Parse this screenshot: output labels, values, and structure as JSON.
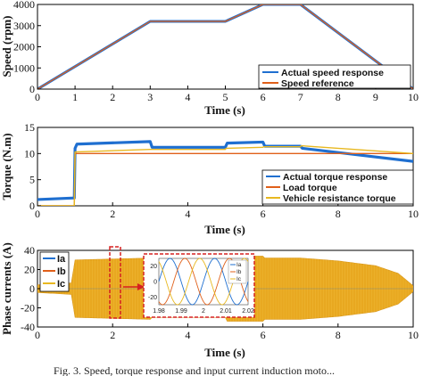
{
  "chart_data": [
    {
      "type": "line",
      "xlabel": "Time (s)",
      "ylabel": "Speed (rpm)",
      "xlim": [
        0,
        10
      ],
      "ylim": [
        0,
        4000
      ],
      "xticks": [
        "0",
        "1",
        "2",
        "3",
        "4",
        "5",
        "6",
        "7",
        "8",
        "9",
        "10"
      ],
      "yticks": [
        "0",
        "1000",
        "2000",
        "3000",
        "4000"
      ],
      "grid": false,
      "legend_position": "bottom-right",
      "series": [
        {
          "name": "Actual speed response",
          "color": "#1f6fd0",
          "x": [
            0,
            3,
            5,
            6,
            7,
            10
          ],
          "y": [
            0,
            3200,
            3200,
            4000,
            4000,
            0
          ]
        },
        {
          "name": "Speed reference",
          "color": "#e0601a",
          "x": [
            0,
            3,
            5,
            6,
            7,
            10
          ],
          "y": [
            0,
            3200,
            3200,
            4000,
            4000,
            0
          ]
        }
      ]
    },
    {
      "type": "line",
      "xlabel": "Time (s)",
      "ylabel": "Torque (N.m)",
      "xlim": [
        0,
        10
      ],
      "ylim": [
        0,
        15
      ],
      "xticks": [
        "0",
        "2",
        "4",
        "6",
        "8",
        "10"
      ],
      "yticks": [
        "0",
        "5",
        "10",
        "15"
      ],
      "grid": false,
      "legend_position": "bottom-right",
      "series": [
        {
          "name": "Actual torque response",
          "color": "#1f6fd0",
          "x": [
            0,
            0.98,
            1.0,
            1.05,
            3.0,
            3.05,
            5.0,
            5.05,
            6.0,
            6.05,
            7.0,
            7.05,
            10.0
          ],
          "y": [
            1.2,
            1.5,
            11.0,
            11.8,
            12.3,
            11.2,
            11.2,
            12.0,
            12.2,
            11.4,
            11.4,
            11.0,
            8.5
          ]
        },
        {
          "name": "Load torque",
          "color": "#e0601a",
          "x": [
            0,
            0.98,
            1.0,
            10.0
          ],
          "y": [
            0,
            0,
            10.0,
            10.0
          ]
        },
        {
          "name": "Vehicle resistance torque",
          "color": "#e8b820",
          "x": [
            0,
            0.98,
            1.0,
            3.0,
            3.02,
            5.0,
            5.02,
            6.0,
            6.02,
            7.0,
            7.02,
            10.0
          ],
          "y": [
            0,
            0,
            10.3,
            10.8,
            10.8,
            10.8,
            11.0,
            11.2,
            11.3,
            11.3,
            11.5,
            10.0
          ]
        }
      ]
    },
    {
      "type": "line",
      "xlabel": "Time (s)",
      "ylabel": "Phase currents (A)",
      "xlim": [
        0,
        10
      ],
      "ylim": [
        -40,
        40
      ],
      "xticks": [
        "0",
        "2",
        "4",
        "6",
        "8",
        "10"
      ],
      "yticks": [
        "-40",
        "-20",
        "0",
        "20",
        "40"
      ],
      "grid": false,
      "legend_position": "top-left",
      "envelope": {
        "x": [
          0,
          0.9,
          1.0,
          3.0,
          3.05,
          5.0,
          5.05,
          6.0,
          6.05,
          7.0,
          8.0,
          9.0,
          9.6,
          10.0
        ],
        "amplitude": [
          4,
          6,
          30,
          32,
          30,
          30,
          34,
          34,
          32,
          32,
          29,
          24,
          16,
          3
        ]
      },
      "series": [
        {
          "name": "Ia",
          "color": "#1f6fd0"
        },
        {
          "name": "Ib",
          "color": "#e0601a"
        },
        {
          "name": "Ic",
          "color": "#e8b820"
        }
      ],
      "inset": {
        "xlim": [
          1.98,
          2.02
        ],
        "ylim": [
          -30,
          30
        ],
        "xticks": [
          "1.98",
          "1.99",
          "2",
          "2.01",
          "2.02"
        ],
        "yticks": [
          "20",
          "0",
          "-20"
        ],
        "amplitude": 30,
        "period": 0.02,
        "legend": [
          "Ia",
          "Ib",
          "Ic"
        ]
      }
    }
  ],
  "caption": "Fig. 3. Speed, torque response and input current induction moto..."
}
